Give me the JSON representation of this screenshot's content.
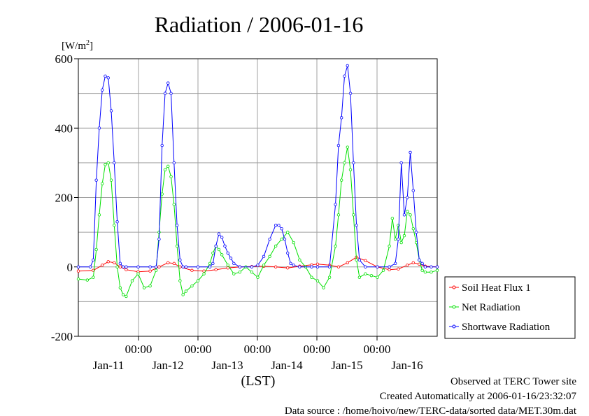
{
  "chart_data": {
    "type": "line",
    "title": "Radiation / 2006-01-16",
    "ylabel": "[W/m",
    "ylabel_sup": "2",
    "ylabel_end": "]",
    "xlabel": "(LST)",
    "ylim": [
      -200,
      600
    ],
    "xlim": [
      0,
      6
    ],
    "y_ticks": [
      "600",
      "400",
      "200",
      "0",
      "-200"
    ],
    "x_ticks": [
      {
        "time": "00:00",
        "date": "Jan-11"
      },
      {
        "time": "00:00",
        "date": "Jan-12"
      },
      {
        "time": "00:00",
        "date": "Jan-13"
      },
      {
        "time": "00:00",
        "date": "Jan-14"
      },
      {
        "time": "00:00",
        "date": "Jan-15"
      },
      {
        "time": "00:00",
        "date": "Jan-16"
      }
    ],
    "grid": true,
    "legend_position": "right",
    "series": [
      {
        "name": "Soil Heat Flux 1",
        "color": "#ff0000",
        "x": [
          0.0,
          0.25,
          0.4,
          0.5,
          0.6,
          0.7,
          0.8,
          1.0,
          1.2,
          1.35,
          1.5,
          1.6,
          1.7,
          1.9,
          2.1,
          2.3,
          2.5,
          2.7,
          2.9,
          3.1,
          3.3,
          3.5,
          3.7,
          3.9,
          4.0,
          4.2,
          4.35,
          4.5,
          4.65,
          4.8,
          5.0,
          5.2,
          5.35,
          5.5,
          5.6,
          5.7,
          5.8,
          6.0
        ],
        "y": [
          -12,
          -10,
          5,
          15,
          12,
          0,
          -8,
          -14,
          -12,
          0,
          12,
          10,
          0,
          -10,
          -12,
          -8,
          -3,
          0,
          1,
          2,
          0,
          -3,
          2,
          6,
          8,
          5,
          0,
          12,
          28,
          18,
          0,
          -8,
          -6,
          5,
          12,
          8,
          2,
          0
        ]
      },
      {
        "name": "Net Radiation",
        "color": "#00e000",
        "x": [
          0.0,
          0.15,
          0.25,
          0.3,
          0.35,
          0.4,
          0.45,
          0.5,
          0.55,
          0.6,
          0.65,
          0.7,
          0.75,
          0.8,
          0.9,
          1.0,
          1.1,
          1.2,
          1.3,
          1.35,
          1.4,
          1.45,
          1.5,
          1.55,
          1.6,
          1.65,
          1.7,
          1.75,
          1.8,
          1.9,
          2.0,
          2.1,
          2.2,
          2.25,
          2.3,
          2.35,
          2.4,
          2.5,
          2.6,
          2.7,
          2.8,
          2.9,
          3.0,
          3.1,
          3.2,
          3.3,
          3.4,
          3.5,
          3.6,
          3.7,
          3.8,
          3.9,
          4.0,
          4.1,
          4.2,
          4.3,
          4.35,
          4.4,
          4.45,
          4.5,
          4.55,
          4.6,
          4.65,
          4.7,
          4.8,
          4.9,
          5.0,
          5.1,
          5.2,
          5.25,
          5.3,
          5.35,
          5.4,
          5.45,
          5.5,
          5.55,
          5.6,
          5.65,
          5.7,
          5.75,
          5.8,
          5.9,
          6.0
        ],
        "y": [
          -35,
          -38,
          -30,
          50,
          150,
          240,
          295,
          300,
          250,
          120,
          0,
          -60,
          -80,
          -85,
          -40,
          -20,
          -60,
          -55,
          -10,
          100,
          210,
          280,
          290,
          260,
          180,
          60,
          -40,
          -80,
          -70,
          -55,
          -40,
          -20,
          10,
          40,
          60,
          50,
          35,
          5,
          -20,
          -15,
          0,
          -15,
          -30,
          5,
          30,
          60,
          80,
          100,
          70,
          20,
          0,
          -30,
          -40,
          -60,
          -30,
          60,
          150,
          250,
          300,
          345,
          280,
          150,
          20,
          -30,
          -20,
          -25,
          -30,
          -10,
          60,
          140,
          80,
          120,
          70,
          90,
          160,
          150,
          110,
          70,
          20,
          -10,
          -15,
          -15,
          -10
        ]
      },
      {
        "name": "Shortwave Radiation",
        "color": "#0000ff",
        "x": [
          0.0,
          0.2,
          0.25,
          0.3,
          0.35,
          0.4,
          0.45,
          0.5,
          0.55,
          0.6,
          0.65,
          0.7,
          0.75,
          0.8,
          1.0,
          1.2,
          1.3,
          1.35,
          1.4,
          1.45,
          1.5,
          1.55,
          1.6,
          1.65,
          1.7,
          1.75,
          1.8,
          2.0,
          2.2,
          2.25,
          2.3,
          2.35,
          2.4,
          2.45,
          2.5,
          2.55,
          2.6,
          2.7,
          2.9,
          3.0,
          3.1,
          3.2,
          3.3,
          3.35,
          3.4,
          3.45,
          3.5,
          3.55,
          3.6,
          3.7,
          3.9,
          4.0,
          4.2,
          4.3,
          4.35,
          4.4,
          4.45,
          4.5,
          4.55,
          4.6,
          4.65,
          4.7,
          4.8,
          5.0,
          5.2,
          5.3,
          5.35,
          5.4,
          5.45,
          5.5,
          5.55,
          5.6,
          5.65,
          5.7,
          5.75,
          5.8,
          5.9,
          6.0
        ],
        "y": [
          0,
          0,
          20,
          250,
          400,
          510,
          550,
          545,
          450,
          300,
          130,
          10,
          0,
          0,
          0,
          0,
          0,
          80,
          350,
          500,
          530,
          500,
          300,
          120,
          20,
          0,
          0,
          0,
          0,
          10,
          60,
          95,
          85,
          60,
          40,
          25,
          10,
          0,
          0,
          5,
          30,
          80,
          120,
          120,
          110,
          80,
          40,
          10,
          5,
          0,
          0,
          0,
          0,
          180,
          350,
          430,
          550,
          580,
          500,
          300,
          120,
          20,
          0,
          0,
          0,
          10,
          80,
          300,
          150,
          200,
          330,
          220,
          100,
          20,
          10,
          0,
          0,
          0
        ]
      }
    ]
  },
  "footer": {
    "line1": "Observed at TERC Tower site",
    "line2": "Created Automatically at 2006-01-16/23:32:07",
    "line3": "Data source : /home/hoivo/new/TERC-data/sorted  data/MET.30m.dat"
  }
}
